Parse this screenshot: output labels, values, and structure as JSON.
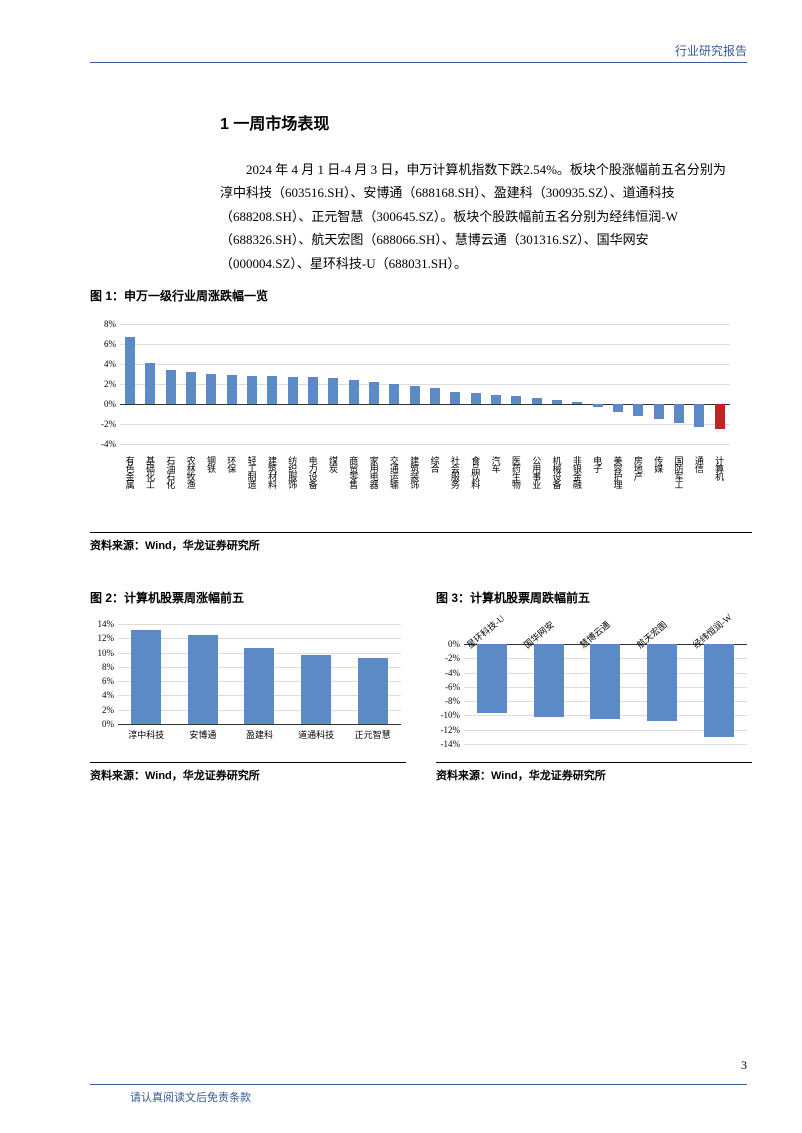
{
  "header": {
    "right": "行业研究报告"
  },
  "section_title": "1 一周市场表现",
  "body": "2024 年 4 月 1 日-4 月 3 日，申万计算机指数下跌2.54%。板块个股涨幅前五名分别为淳中科技（603516.SH）、安博通（688168.SH）、盈建科（300935.SZ）、道通科技（688208.SH）、正元智慧（300645.SZ）。板块个股跌幅前五名分别为经纬恒润-W（688326.SH）、航天宏图（688066.SH）、慧博云通（301316.SZ）、国华网安（000004.SZ）、星环科技-U（688031.SH）。",
  "chart1": {
    "caption": "图 1：申万一级行业周涨跌幅一览",
    "type": "bar",
    "ylim": [
      -4,
      8
    ],
    "ytick_step": 2,
    "yticks": [
      "-4%",
      "-2%",
      "0%",
      "2%",
      "4%",
      "6%",
      "8%"
    ],
    "bar_color": "#5b8ac6",
    "highlight_color": "#c02626",
    "grid_color": "#dcdcdc",
    "categories": [
      "有色金属",
      "基础化工",
      "石油石化",
      "农林牧渔",
      "钢铁",
      "环保",
      "轻工制造",
      "建筑材料",
      "纺织服饰",
      "电力设备",
      "煤炭",
      "商贸零售",
      "家用电器",
      "交通运输",
      "建筑装饰",
      "综合",
      "社会服务",
      "食品饮料",
      "汽车",
      "医药生物",
      "公用事业",
      "机械设备",
      "非银金融",
      "电子",
      "美容护理",
      "房地产",
      "传媒",
      "国防军工",
      "通信",
      "计算机"
    ],
    "values": [
      6.7,
      4.1,
      3.4,
      3.2,
      3.0,
      2.9,
      2.8,
      2.8,
      2.7,
      2.7,
      2.6,
      2.4,
      2.2,
      2.0,
      1.8,
      1.6,
      1.2,
      1.1,
      0.9,
      0.8,
      0.6,
      0.4,
      0.2,
      -0.3,
      -0.8,
      -1.2,
      -1.5,
      -1.9,
      -2.3,
      -2.54
    ],
    "highlight_index": 29,
    "source": "资料来源：Wind，华龙证券研究所"
  },
  "chart2": {
    "caption": "图 2：计算机股票周涨幅前五",
    "type": "bar",
    "ylim": [
      0,
      14
    ],
    "ytick_step": 2,
    "yticks": [
      "0%",
      "2%",
      "4%",
      "6%",
      "8%",
      "10%",
      "12%",
      "14%"
    ],
    "bar_color": "#5b8ac6",
    "grid_color": "#dcdcdc",
    "categories": [
      "淳中科技",
      "安博通",
      "盈建科",
      "道通科技",
      "正元智慧"
    ],
    "values": [
      13.2,
      12.5,
      10.6,
      9.6,
      9.3
    ],
    "source": "资料来源：Wind，华龙证券研究所"
  },
  "chart3": {
    "caption": "图 3：计算机股票周跌幅前五",
    "type": "bar",
    "ylim": [
      -14,
      0
    ],
    "ytick_step": 2,
    "yticks": [
      "-14%",
      "-12%",
      "-10%",
      "-8%",
      "-6%",
      "-4%",
      "-2%",
      "0%"
    ],
    "bar_color": "#5b8ac6",
    "grid_color": "#dcdcdc",
    "categories": [
      "星环科技-U",
      "国华网安",
      "慧博云通",
      "航天宏图",
      "经纬恒润-W"
    ],
    "values": [
      -9.7,
      -10.2,
      -10.5,
      -10.8,
      -13.0
    ],
    "source": "资料来源：Wind，华龙证券研究所"
  },
  "page_number": "3",
  "footer": "请认真阅读文后免责条款"
}
